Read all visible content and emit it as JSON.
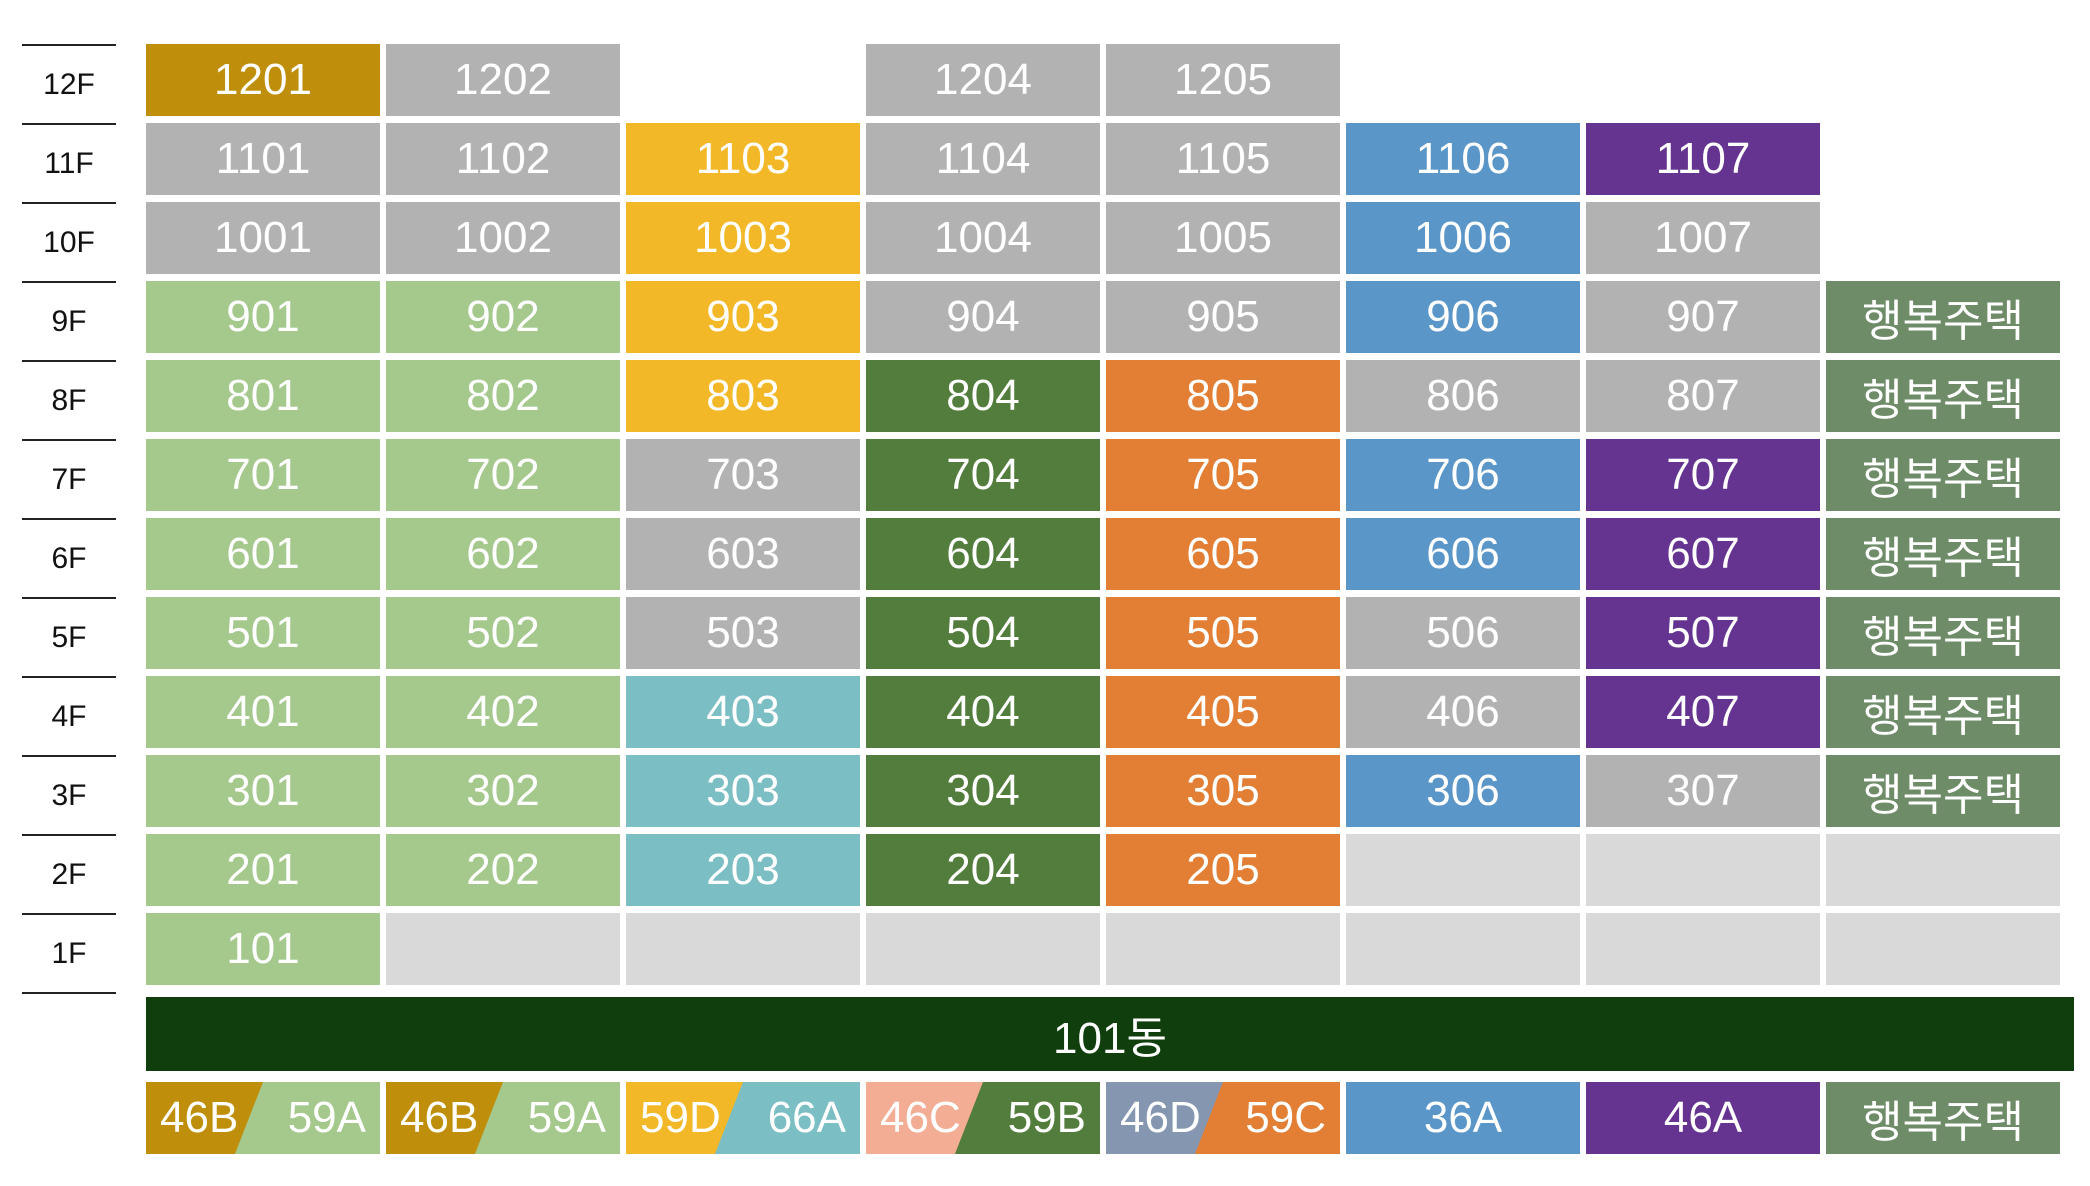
{
  "colors": {
    "46B": "#bf8f0c",
    "59A": "#a5c88d",
    "59D": "#f2b827",
    "66A": "#7bbec4",
    "46C": "#f4ad95",
    "59B": "#527d3c",
    "46D": "#8496b0",
    "59C": "#e27f35",
    "36A": "#5b96c9",
    "46A": "#653491",
    "happy": "#6e8c68",
    "gray": "#b2b2b2",
    "empty": "#d9d9d9",
    "building": "#103f0d"
  },
  "floors": [
    "12F",
    "11F",
    "10F",
    "9F",
    "8F",
    "7F",
    "6F",
    "5F",
    "4F",
    "3F",
    "2F",
    "1F"
  ],
  "grid": [
    [
      {
        "t": "1201",
        "c": "46B"
      },
      {
        "t": "1202",
        "c": "gray"
      },
      null,
      {
        "t": "1204",
        "c": "gray"
      },
      {
        "t": "1205",
        "c": "gray"
      },
      null,
      null,
      null
    ],
    [
      {
        "t": "1101",
        "c": "gray"
      },
      {
        "t": "1102",
        "c": "gray"
      },
      {
        "t": "1103",
        "c": "59D"
      },
      {
        "t": "1104",
        "c": "gray"
      },
      {
        "t": "1105",
        "c": "gray"
      },
      {
        "t": "1106",
        "c": "36A"
      },
      {
        "t": "1107",
        "c": "46A"
      },
      null
    ],
    [
      {
        "t": "1001",
        "c": "gray"
      },
      {
        "t": "1002",
        "c": "gray"
      },
      {
        "t": "1003",
        "c": "59D"
      },
      {
        "t": "1004",
        "c": "gray"
      },
      {
        "t": "1005",
        "c": "gray"
      },
      {
        "t": "1006",
        "c": "36A"
      },
      {
        "t": "1007",
        "c": "gray"
      },
      null
    ],
    [
      {
        "t": "901",
        "c": "59A"
      },
      {
        "t": "902",
        "c": "59A"
      },
      {
        "t": "903",
        "c": "59D"
      },
      {
        "t": "904",
        "c": "gray"
      },
      {
        "t": "905",
        "c": "gray"
      },
      {
        "t": "906",
        "c": "36A"
      },
      {
        "t": "907",
        "c": "gray"
      },
      {
        "t": "행복주택",
        "c": "happy"
      }
    ],
    [
      {
        "t": "801",
        "c": "59A"
      },
      {
        "t": "802",
        "c": "59A"
      },
      {
        "t": "803",
        "c": "59D"
      },
      {
        "t": "804",
        "c": "59B"
      },
      {
        "t": "805",
        "c": "59C"
      },
      {
        "t": "806",
        "c": "gray"
      },
      {
        "t": "807",
        "c": "gray"
      },
      {
        "t": "행복주택",
        "c": "happy"
      }
    ],
    [
      {
        "t": "701",
        "c": "59A"
      },
      {
        "t": "702",
        "c": "59A"
      },
      {
        "t": "703",
        "c": "gray"
      },
      {
        "t": "704",
        "c": "59B"
      },
      {
        "t": "705",
        "c": "59C"
      },
      {
        "t": "706",
        "c": "36A"
      },
      {
        "t": "707",
        "c": "46A"
      },
      {
        "t": "행복주택",
        "c": "happy"
      }
    ],
    [
      {
        "t": "601",
        "c": "59A"
      },
      {
        "t": "602",
        "c": "59A"
      },
      {
        "t": "603",
        "c": "gray"
      },
      {
        "t": "604",
        "c": "59B"
      },
      {
        "t": "605",
        "c": "59C"
      },
      {
        "t": "606",
        "c": "36A"
      },
      {
        "t": "607",
        "c": "46A"
      },
      {
        "t": "행복주택",
        "c": "happy"
      }
    ],
    [
      {
        "t": "501",
        "c": "59A"
      },
      {
        "t": "502",
        "c": "59A"
      },
      {
        "t": "503",
        "c": "gray"
      },
      {
        "t": "504",
        "c": "59B"
      },
      {
        "t": "505",
        "c": "59C"
      },
      {
        "t": "506",
        "c": "gray"
      },
      {
        "t": "507",
        "c": "46A"
      },
      {
        "t": "행복주택",
        "c": "happy"
      }
    ],
    [
      {
        "t": "401",
        "c": "59A"
      },
      {
        "t": "402",
        "c": "59A"
      },
      {
        "t": "403",
        "c": "66A"
      },
      {
        "t": "404",
        "c": "59B"
      },
      {
        "t": "405",
        "c": "59C"
      },
      {
        "t": "406",
        "c": "gray"
      },
      {
        "t": "407",
        "c": "46A"
      },
      {
        "t": "행복주택",
        "c": "happy"
      }
    ],
    [
      {
        "t": "301",
        "c": "59A"
      },
      {
        "t": "302",
        "c": "59A"
      },
      {
        "t": "303",
        "c": "66A"
      },
      {
        "t": "304",
        "c": "59B"
      },
      {
        "t": "305",
        "c": "59C"
      },
      {
        "t": "306",
        "c": "36A"
      },
      {
        "t": "307",
        "c": "gray"
      },
      {
        "t": "행복주택",
        "c": "happy"
      }
    ],
    [
      {
        "t": "201",
        "c": "59A"
      },
      {
        "t": "202",
        "c": "59A"
      },
      {
        "t": "203",
        "c": "66A"
      },
      {
        "t": "204",
        "c": "59B"
      },
      {
        "t": "205",
        "c": "59C"
      },
      {
        "t": "",
        "c": "empty"
      },
      {
        "t": "",
        "c": "empty"
      },
      {
        "t": "",
        "c": "empty"
      }
    ],
    [
      {
        "t": "101",
        "c": "59A"
      },
      {
        "t": "",
        "c": "empty"
      },
      {
        "t": "",
        "c": "empty"
      },
      {
        "t": "",
        "c": "empty"
      },
      {
        "t": "",
        "c": "empty"
      },
      {
        "t": "",
        "c": "empty"
      },
      {
        "t": "",
        "c": "empty"
      },
      {
        "t": "",
        "c": "empty"
      }
    ]
  ],
  "building_label": "101동",
  "types": [
    {
      "left": "46B",
      "right": "59A"
    },
    {
      "left": "46B",
      "right": "59A"
    },
    {
      "left": "59D",
      "right": "66A"
    },
    {
      "left": "46C",
      "right": "59B"
    },
    {
      "left": "46D",
      "right": "59C"
    },
    {
      "full": "36A"
    },
    {
      "full": "46A"
    },
    {
      "full": "행복주택",
      "c": "happy"
    }
  ]
}
